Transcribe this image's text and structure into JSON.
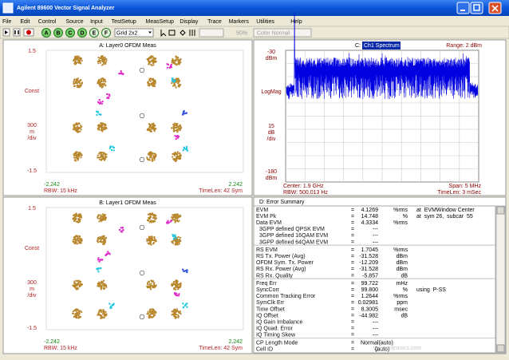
{
  "window": {
    "title": "Agilent 89600 Vector Signal Analyzer"
  },
  "menu": [
    "File",
    "Edit",
    "Control",
    "Source",
    "Input",
    "TestSetup",
    "MeasSetup",
    "Display",
    "Trace",
    "Markers",
    "Utilities",
    "Help"
  ],
  "toolbar": {
    "traces": [
      "A",
      "B",
      "C",
      "D",
      "E",
      "F"
    ],
    "grid": "Grid 2x2",
    "zoom": "50%",
    "color": "Color Normal"
  },
  "panels": {
    "a": {
      "title": "A: Layer0 OFDM Meas",
      "y_top": "1.5",
      "format": "Const",
      "scale": [
        "300",
        "m",
        "/div"
      ],
      "y_bottom": "-1.5",
      "x_left": "-2.242",
      "x_right": "2.242",
      "rbw": "RBW: 15 kHz",
      "timelen": "TimeLen: 42 Sym"
    },
    "b": {
      "title": "B: Layer1 OFDM Meas",
      "y_top": "1.5",
      "format": "Const",
      "scale": [
        "300",
        "m",
        "/div"
      ],
      "y_bottom": "-1.5",
      "x_left": "-2.242",
      "x_right": "2.242",
      "rbw": "RBW: 15 kHz",
      "timelen": "TimeLen: 42 Sym"
    },
    "c": {
      "prefix": "C:",
      "title": "Ch1 Spectrum",
      "range": "Range: 2 dBm",
      "y_top": [
        "-30",
        "dBm"
      ],
      "format": "LogMag",
      "scale": [
        "15",
        "dB",
        "/div"
      ],
      "y_bottom": [
        "-180",
        "dBm"
      ],
      "center": "Center: 1.9 GHz",
      "span": "Span: 5 MHz",
      "rbw": "RBW: 500.013 Hz",
      "timelen": "TimeLen: 3 mSec"
    },
    "d": {
      "title": "D: Error Summary",
      "equals": "=",
      "sections": [
        [
          {
            "label": "EVM",
            "value": "4.1269",
            "unit": "%rms",
            "note": "at  EVMWindow Center"
          },
          {
            "label": "EVM Pk",
            "value": "14.748",
            "unit": "%",
            "note": "at  sym 26,  subcar  55"
          },
          {
            "label": "Data EVM",
            "value": "4.3334",
            "unit": "%rms"
          },
          {
            "label": "  3GPP defined QPSK EVM",
            "value": "---"
          },
          {
            "label": "  3GPP defined 16QAM EVM",
            "value": "---"
          },
          {
            "label": "  3GPP defined 64QAM EVM",
            "value": "---"
          }
        ],
        [
          {
            "label": "RS EVM",
            "value": "1.7045",
            "unit": "%rms"
          },
          {
            "label": "RS Tx. Power (Avg)",
            "value": "-31.528",
            "unit": "dBm"
          },
          {
            "label": "OFDM Sym. Tx. Power",
            "value": "-12.209",
            "unit": "dBm"
          },
          {
            "label": "RS Rx. Power (Avg)",
            "value": "-31.528",
            "unit": "dBm"
          },
          {
            "label": "RS Rx. Quality",
            "value": "-5.857",
            "unit": "dB"
          }
        ],
        [
          {
            "label": "Freq Err",
            "value": "99.722",
            "unit": "mHz"
          },
          {
            "label": "SyncCorr",
            "value": "99.800",
            "unit": "%",
            "note": "using  P-SS"
          },
          {
            "label": "Common Tracking Error",
            "value": "1.2644",
            "unit": "%rms"
          },
          {
            "label": "SymClk Err",
            "value": "0.02981",
            "unit": "ppm"
          },
          {
            "label": "Time Offset",
            "value": "8.3005",
            "unit": "msec"
          },
          {
            "label": "IQ Offset",
            "value": "-44.982",
            "unit": "dB"
          },
          {
            "label": "IQ Gain Imbalance",
            "value": "---"
          },
          {
            "label": "IQ Quad. Error",
            "value": "---"
          },
          {
            "label": "IQ Timing Skew",
            "value": "---"
          }
        ],
        [
          {
            "label": "CP Length Mode",
            "value": "Normal(auto)"
          },
          {
            "label": "Cell ID",
            "value": "0",
            "unit": "(auto)"
          }
        ]
      ]
    }
  },
  "watermark": "www.cntronics.com"
}
